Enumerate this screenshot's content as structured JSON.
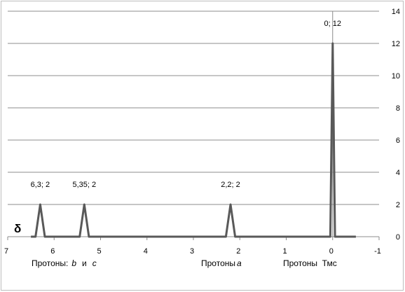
{
  "chart_data": {
    "type": "line",
    "title": "",
    "x_reversed": true,
    "xlim": [
      -1,
      7
    ],
    "ylim": [
      0,
      14
    ],
    "x_ticks": [
      7,
      6,
      5,
      4,
      3,
      2,
      1,
      0,
      -1
    ],
    "x_tick_labels": [
      "7",
      "6",
      "5",
      "4",
      "3",
      "2",
      "1",
      "0",
      "-1"
    ],
    "y_ticks": [
      0,
      2,
      4,
      6,
      8,
      10,
      12,
      14
    ],
    "y_tick_labels": [
      "0",
      "2",
      "4",
      "6",
      "8",
      "10",
      "12",
      "14"
    ],
    "y_axis_position": "right, at x = 0",
    "grid": "horizontal",
    "legend": "none",
    "series": [
      {
        "color": "#595959",
        "x": [
          6.5,
          6.4,
          6.3,
          6.2,
          5.5,
          5.45,
          5.35,
          5.25,
          2.4,
          2.3,
          2.2,
          2.1,
          0.1,
          0.05,
          0,
          -0.05,
          -0.5
        ],
        "y": [
          0,
          0,
          2,
          0,
          0,
          0,
          2,
          0,
          0,
          0,
          2,
          0,
          0,
          0,
          12,
          0,
          0
        ]
      }
    ],
    "data_labels": [
      {
        "x": 6.3,
        "y": 2,
        "text": "6,3; 2"
      },
      {
        "x": 5.35,
        "y": 2,
        "text": "5,35; 2"
      },
      {
        "x": 2.2,
        "y": 2,
        "text": "2,2; 2"
      },
      {
        "x": 0,
        "y": 12,
        "text": "0; 12"
      }
    ],
    "axis_symbol": "δ",
    "annotations": {
      "protons_bc": {
        "prefix": "Протоны:",
        "b": "b",
        "and": "и",
        "c": "c"
      },
      "protons_a": {
        "prefix": "Протоны",
        "a": "a"
      },
      "protons_tms": "Протоны  Тмс"
    }
  }
}
